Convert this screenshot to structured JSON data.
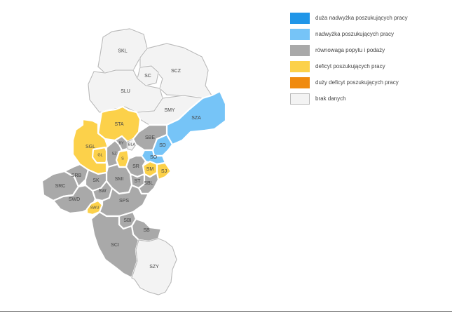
{
  "colors": {
    "very_high_surplus": "#2196e8",
    "surplus": "#76c4f7",
    "balance": "#a9a9a9",
    "deficit": "#fcd14a",
    "high_deficit": "#f08a0e",
    "no_data": "#f3f3f3",
    "border": "#bbbbbb"
  },
  "legend": {
    "items": [
      {
        "color": "#2196e8",
        "label": "duża nadwyżka poszukujących pracy"
      },
      {
        "color": "#76c4f7",
        "label": "nadwyżka poszukujących pracy"
      },
      {
        "color": "#a9a9a9",
        "label": "równowaga popytu i podaży"
      },
      {
        "color": "#fcd14a",
        "label": "deficyt poszukujących pracy"
      },
      {
        "color": "#f08a0e",
        "label": "duży deficyt poszukujących pracy"
      },
      {
        "color": "#f3f3f3",
        "label": "brak danych"
      }
    ]
  },
  "regions": [
    {
      "code": "SKL",
      "category": "no_data"
    },
    {
      "code": "SC",
      "category": "no_data"
    },
    {
      "code": "SCZ",
      "category": "no_data"
    },
    {
      "code": "SLU",
      "category": "no_data"
    },
    {
      "code": "SMY",
      "category": "no_data"
    },
    {
      "code": "SZA",
      "category": "surplus"
    },
    {
      "code": "STA",
      "category": "deficit"
    },
    {
      "code": "SGL",
      "category": "deficit"
    },
    {
      "code": "GL",
      "category": "deficit"
    },
    {
      "code": "SZ",
      "category": "balance"
    },
    {
      "code": "BY",
      "category": "balance"
    },
    {
      "code": "BLA",
      "category": "no_data"
    },
    {
      "code": "S",
      "category": "deficit"
    },
    {
      "code": "SBE",
      "category": "balance"
    },
    {
      "code": "SD",
      "category": "surplus"
    },
    {
      "code": "SO",
      "category": "surplus"
    },
    {
      "code": "SM",
      "category": "deficit"
    },
    {
      "code": "SJ",
      "category": "deficit"
    },
    {
      "code": "SR",
      "category": "balance"
    },
    {
      "code": "ST",
      "category": "balance"
    },
    {
      "code": "SBL",
      "category": "balance"
    },
    {
      "code": "SMI",
      "category": "balance"
    },
    {
      "code": "SRC",
      "category": "balance"
    },
    {
      "code": "SRB",
      "category": "balance"
    },
    {
      "code": "SK",
      "category": "balance"
    },
    {
      "code": "SW",
      "category": "balance"
    },
    {
      "code": "SWD",
      "category": "balance"
    },
    {
      "code": "SWU",
      "category": "deficit"
    },
    {
      "code": "SPS",
      "category": "balance"
    },
    {
      "code": "SBI",
      "category": "balance"
    },
    {
      "code": "SB",
      "category": "balance"
    },
    {
      "code": "SCI",
      "category": "balance"
    },
    {
      "code": "SZY",
      "category": "no_data"
    }
  ]
}
